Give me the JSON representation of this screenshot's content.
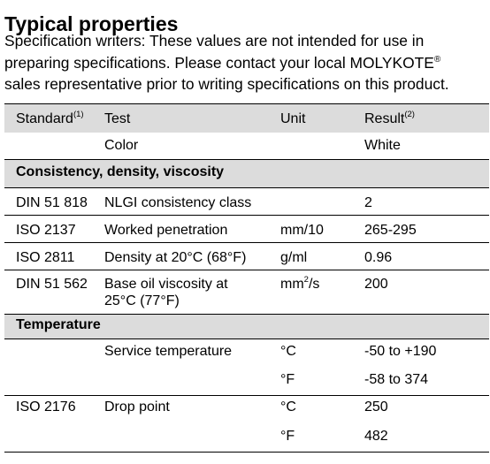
{
  "title": "Typical properties",
  "intro": {
    "line1": "Specification writers: These values are not intended for use in",
    "line2_text": "preparing specifications. Please contact your local MOLYKOTE",
    "line2_mark": "®",
    "line3": "sales representative prior to writing specifications on this product."
  },
  "table": {
    "headers": {
      "standard": "Standard",
      "standard_note": "(1)",
      "test": "Test",
      "unit": "Unit",
      "result": "Result",
      "result_note": "(2)"
    },
    "color_row": {
      "standard": "",
      "test": "Color",
      "unit": "",
      "result": "White"
    },
    "sections": {
      "consistency": "Consistency, density, viscosity",
      "temperature": "Temperature"
    },
    "consistency_rows": [
      {
        "standard": "DIN 51 818",
        "test": "NLGI consistency class",
        "unit": "",
        "result": "2"
      },
      {
        "standard": "ISO 2137",
        "test": "Worked penetration",
        "unit": "mm/10",
        "result": "265-295"
      },
      {
        "standard": "ISO 2811",
        "test": "Density at 20°C (68°F)",
        "unit": "g/ml",
        "result": "0.96"
      },
      {
        "standard": "DIN 51 562",
        "test_line1": "Base oil viscosity at",
        "test_line2": "25°C (77°F)",
        "unit_base": "mm",
        "unit_exp": "2",
        "unit_tail": "/s",
        "result": "200"
      }
    ],
    "temperature_rows": [
      {
        "standard": "",
        "test": "Service temperature",
        "unit": "°C",
        "result": "-50 to +190"
      },
      {
        "standard": "",
        "test": "",
        "unit": "°F",
        "result": "-58 to 374"
      },
      {
        "standard": "ISO 2176",
        "test": "Drop point",
        "unit": "°C",
        "result": "250"
      },
      {
        "standard": "",
        "test": "",
        "unit": "°F",
        "result": "482"
      }
    ]
  }
}
